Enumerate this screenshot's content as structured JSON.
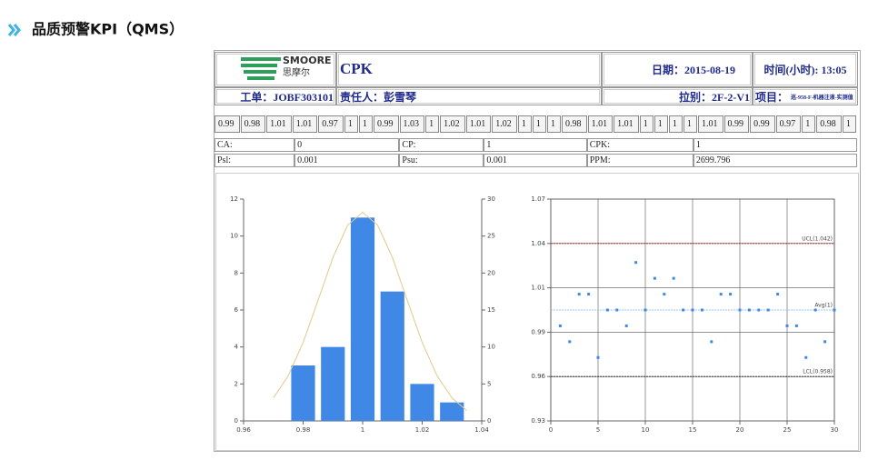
{
  "title": "品质预警KPI（QMS）",
  "header": {
    "logo": "SMOORE",
    "logo_sub": "思摩尔",
    "report": "CPK",
    "date": "日期：2015-08-19",
    "time": "时间(小时): 13:05",
    "job": "工单：JOBF303101",
    "owner": "责任人：彭雪琴",
    "line": "拉别：2F-2-V1",
    "project_label": "项目：",
    "project": "巡-958-F-机器注液-实测值"
  },
  "stats": [
    [
      {
        "label": "CA:",
        "value": "0"
      },
      {
        "label": "CP:",
        "value": "1"
      },
      {
        "label": "CPK:",
        "value": "1"
      }
    ],
    [
      {
        "label": "Psl:",
        "value": "0.001"
      },
      {
        "label": "Psu:",
        "value": "0.001"
      },
      {
        "label": "PPM:",
        "value": "2699.796"
      }
    ]
  ],
  "chart_data": [
    {
      "type": "bar",
      "x": [
        0.98,
        0.99,
        1,
        1.01,
        1.02,
        1.03
      ],
      "values": [
        3,
        4,
        11,
        7,
        2,
        1
      ],
      "color": "#3f88e6",
      "bar_width": 0.008,
      "xlim": [
        0.96,
        1.04
      ],
      "xticks": [
        0.96,
        0.98,
        1,
        1.02,
        1.04
      ],
      "ylim": [
        0,
        12
      ],
      "yticks": [
        0,
        2,
        4,
        6,
        8,
        10,
        12
      ],
      "y2lim": [
        0,
        30
      ],
      "y2ticks": [
        0,
        5,
        10,
        15,
        20,
        25,
        30
      ],
      "curve": {
        "axis": "y2",
        "color": "#e3c98a",
        "x": [
          0.97,
          0.975,
          0.98,
          0.985,
          0.99,
          0.995,
          1,
          1.005,
          1.01,
          1.015,
          1.02,
          1.025,
          1.03,
          1.035
        ],
        "values": [
          3.1,
          6.1,
          10.6,
          16.3,
          22.1,
          26.5,
          28.2,
          26.5,
          22.1,
          16.3,
          10.6,
          6.1,
          3.1,
          1.4
        ]
      }
    },
    {
      "type": "scatter",
      "color": "#3f88e6",
      "grid": true,
      "x": [
        1,
        2,
        3,
        4,
        5,
        6,
        7,
        8,
        9,
        10,
        11,
        12,
        13,
        14,
        15,
        16,
        17,
        18,
        19,
        20,
        21,
        22,
        23,
        24,
        25,
        26,
        27,
        28,
        29,
        30
      ],
      "values": [
        0.99,
        0.98,
        1.01,
        1.01,
        0.97,
        1,
        1,
        0.99,
        1.03,
        1,
        1.02,
        1.01,
        1.02,
        1,
        1,
        1,
        0.98,
        1.01,
        1.01,
        1,
        1,
        1,
        1,
        1.01,
        0.99,
        0.99,
        0.97,
        1,
        0.98,
        1
      ],
      "xlim": [
        0,
        30
      ],
      "xticks": [
        0,
        5,
        10,
        15,
        20,
        25,
        30
      ],
      "ylim": [
        0.93,
        1.07
      ],
      "yticks": [
        0.93,
        {
          "value": 0.958,
          "label": "0.96"
        },
        {
          "value": 0.986,
          "label": "0.99"
        },
        {
          "value": 1.014,
          "label": "1.01"
        },
        {
          "value": 1.042,
          "label": "1.04"
        },
        1.07
      ],
      "lines": [
        {
          "label": "UCL(1.042)",
          "value": 1.042,
          "color": "#a52a2a"
        },
        {
          "label": "Avg(1)",
          "value": 1,
          "color": "#9cc8f0"
        },
        {
          "label": "LCL(0.958)",
          "value": 0.958,
          "color": "#333333"
        }
      ]
    }
  ]
}
